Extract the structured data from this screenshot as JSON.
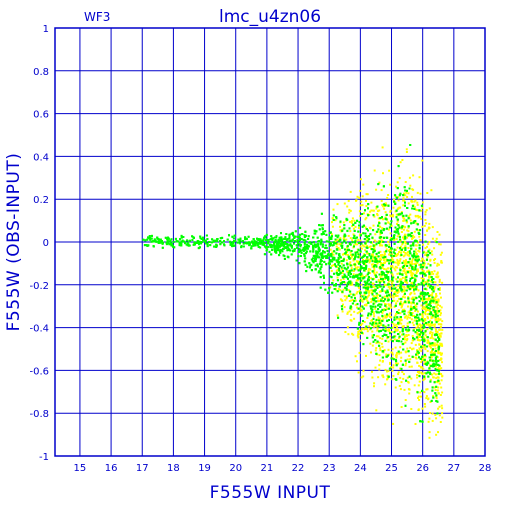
{
  "chart_data": {
    "type": "scatter",
    "title": "lmc_u4zn06",
    "corner_label": "WF3",
    "xlabel": "F555W  INPUT",
    "ylabel": "F555W (OBS-INPUT)",
    "xlim": [
      14.2,
      28
    ],
    "ylim": [
      -1,
      1
    ],
    "x_ticks": [
      15,
      16,
      17,
      18,
      19,
      20,
      21,
      22,
      23,
      24,
      25,
      26,
      27,
      28
    ],
    "y_ticks": [
      -1,
      -0.8,
      -0.6,
      -0.4,
      -0.2,
      0,
      0.2,
      0.4,
      0.6,
      0.8,
      1
    ],
    "y_tick_labels": [
      "-1",
      "-0.8",
      "-0.6",
      "-0.4",
      "-0.2",
      "0",
      "0.2",
      "0.4",
      "0.6",
      "0.8",
      "1"
    ],
    "grid": true,
    "series": [
      {
        "color": "#ffff00",
        "envelope": [
          {
            "x": 23.0,
            "lo": -0.35,
            "hi": 0.25
          },
          {
            "x": 24.0,
            "lo": -0.75,
            "hi": 0.4
          },
          {
            "x": 25.0,
            "lo": -0.95,
            "hi": 0.55
          },
          {
            "x": 25.5,
            "lo": -1.0,
            "hi": 0.6
          },
          {
            "x": 26.0,
            "lo": -1.0,
            "hi": 0.45
          },
          {
            "x": 26.6,
            "lo": -1.0,
            "hi": 0.1
          }
        ]
      },
      {
        "color": "#00ff00",
        "envelope": [
          {
            "x": 17.0,
            "lo": -0.04,
            "hi": 0.05
          },
          {
            "x": 18.0,
            "lo": -0.03,
            "hi": 0.04
          },
          {
            "x": 20.0,
            "lo": -0.04,
            "hi": 0.05
          },
          {
            "x": 21.0,
            "lo": -0.06,
            "hi": 0.06
          },
          {
            "x": 22.0,
            "lo": -0.12,
            "hi": 0.1
          },
          {
            "x": 23.0,
            "lo": -0.3,
            "hi": 0.18
          },
          {
            "x": 24.0,
            "lo": -0.55,
            "hi": 0.3
          },
          {
            "x": 25.0,
            "lo": -0.8,
            "hi": 0.45
          },
          {
            "x": 25.5,
            "lo": -0.9,
            "hi": 0.55
          },
          {
            "x": 26.0,
            "lo": -0.95,
            "hi": 0.35
          },
          {
            "x": 26.5,
            "lo": -1.0,
            "hi": 0.05
          }
        ]
      }
    ]
  }
}
